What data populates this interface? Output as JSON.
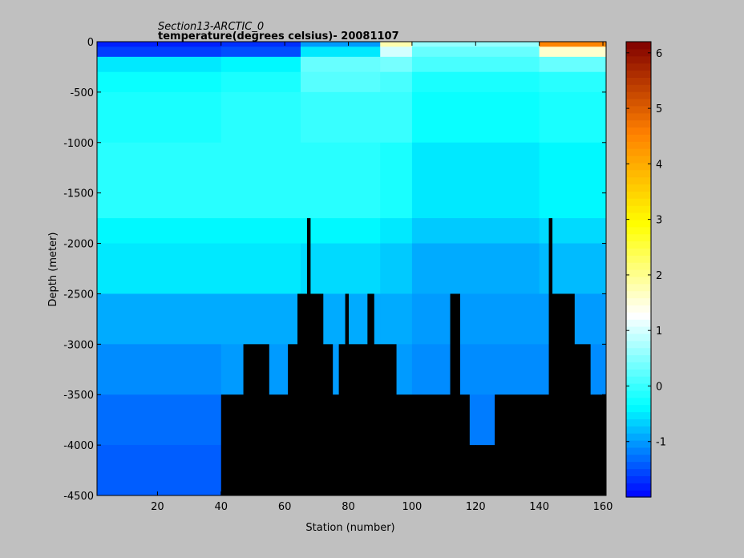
{
  "chart_data": {
    "type": "heatmap",
    "title": "Section13-ARCTIC_0",
    "subtitle": "temperature(degrees  celsius)- 20081107",
    "xlabel": "Station (number)",
    "ylabel": "Depth (meter)",
    "xlim": [
      1,
      161
    ],
    "ylim": [
      -4500,
      0
    ],
    "x_ticks": [
      "20",
      "40",
      "60",
      "80",
      "100",
      "120",
      "140",
      "160"
    ],
    "y_ticks": [
      "0",
      "-500",
      "-1000",
      "-1500",
      "-2000",
      "-2500",
      "-3000",
      "-3500",
      "-4000",
      "-4500"
    ],
    "colorbar": {
      "range": [
        -2,
        6.2
      ],
      "ticks": [
        "6",
        "5",
        "4",
        "3",
        "2",
        "1",
        "0",
        "-1"
      ],
      "colormap": "jet",
      "colormap_stops": [
        "#0000ff",
        "#00ffff",
        "#ffffff",
        "#ffff00",
        "#ff8000",
        "#800000"
      ]
    },
    "depth_levels": [
      0,
      -50,
      -150,
      -300,
      -500,
      -1000,
      -1750,
      -2000,
      -2500,
      -3000,
      -3500,
      -4000,
      -4500
    ],
    "temperature_profiles": [
      {
        "stations": [
          1,
          40
        ],
        "values": [
          -1.8,
          -1.6,
          -0.5,
          -0.3,
          -0.2,
          -0.1,
          -0.4,
          -0.5,
          -0.9,
          -1.1,
          -1.3,
          -1.4
        ]
      },
      {
        "stations": [
          40,
          65
        ],
        "values": [
          -1.7,
          -1.5,
          -0.4,
          -0.2,
          -0.1,
          -0.1,
          -0.4,
          -0.5,
          -0.9,
          -1.0,
          -1.2,
          -1.3
        ]
      },
      {
        "stations": [
          65,
          90
        ],
        "values": [
          -1.0,
          -0.5,
          0.3,
          0.2,
          0.0,
          -0.1,
          -0.4,
          -0.6,
          -0.9,
          -1.0,
          -1.2,
          -1.3
        ]
      },
      {
        "stations": [
          90,
          100
        ],
        "values": [
          1.8,
          1.0,
          0.4,
          0.1,
          0.0,
          -0.2,
          -0.5,
          -0.7,
          -0.9,
          -1.0,
          -1.2,
          -1.3
        ]
      },
      {
        "stations": [
          100,
          140
        ],
        "values": [
          0.6,
          0.3,
          0.1,
          -0.2,
          -0.3,
          -0.5,
          -0.7,
          -0.9,
          -1.0,
          -1.1,
          -1.2,
          -1.3
        ]
      },
      {
        "stations": [
          140,
          161
        ],
        "values": [
          4.5,
          1.6,
          0.3,
          -0.1,
          -0.2,
          -0.4,
          -0.6,
          -0.8,
          -1.0,
          -1.1,
          -1.2,
          -1.3
        ]
      }
    ],
    "seafloor_depth": [
      {
        "stations": [
          1,
          40
        ],
        "depth": -4500
      },
      {
        "stations": [
          40,
          47
        ],
        "depth": -3500
      },
      {
        "stations": [
          47,
          55
        ],
        "depth": -3000
      },
      {
        "stations": [
          55,
          61
        ],
        "depth": -3500
      },
      {
        "stations": [
          61,
          64
        ],
        "depth": -3000
      },
      {
        "stations": [
          64,
          67
        ],
        "depth": -2500
      },
      {
        "stations": [
          67,
          68
        ],
        "depth": -1750
      },
      {
        "stations": [
          68,
          72
        ],
        "depth": -2500
      },
      {
        "stations": [
          72,
          75
        ],
        "depth": -3000
      },
      {
        "stations": [
          75,
          77
        ],
        "depth": -3500
      },
      {
        "stations": [
          77,
          79
        ],
        "depth": -3000
      },
      {
        "stations": [
          79,
          80
        ],
        "depth": -2500
      },
      {
        "stations": [
          80,
          86
        ],
        "depth": -3000
      },
      {
        "stations": [
          86,
          88
        ],
        "depth": -2500
      },
      {
        "stations": [
          88,
          95
        ],
        "depth": -3000
      },
      {
        "stations": [
          95,
          112
        ],
        "depth": -3500
      },
      {
        "stations": [
          112,
          115
        ],
        "depth": -2500
      },
      {
        "stations": [
          115,
          118
        ],
        "depth": -3500
      },
      {
        "stations": [
          118,
          120
        ],
        "depth": -4000
      },
      {
        "stations": [
          120,
          126
        ],
        "depth": -4000
      },
      {
        "stations": [
          126,
          143
        ],
        "depth": -3500
      },
      {
        "stations": [
          143,
          144
        ],
        "depth": -1750
      },
      {
        "stations": [
          144,
          151
        ],
        "depth": -2500
      },
      {
        "stations": [
          151,
          156
        ],
        "depth": -3000
      },
      {
        "stations": [
          156,
          161
        ],
        "depth": -3500
      }
    ]
  }
}
